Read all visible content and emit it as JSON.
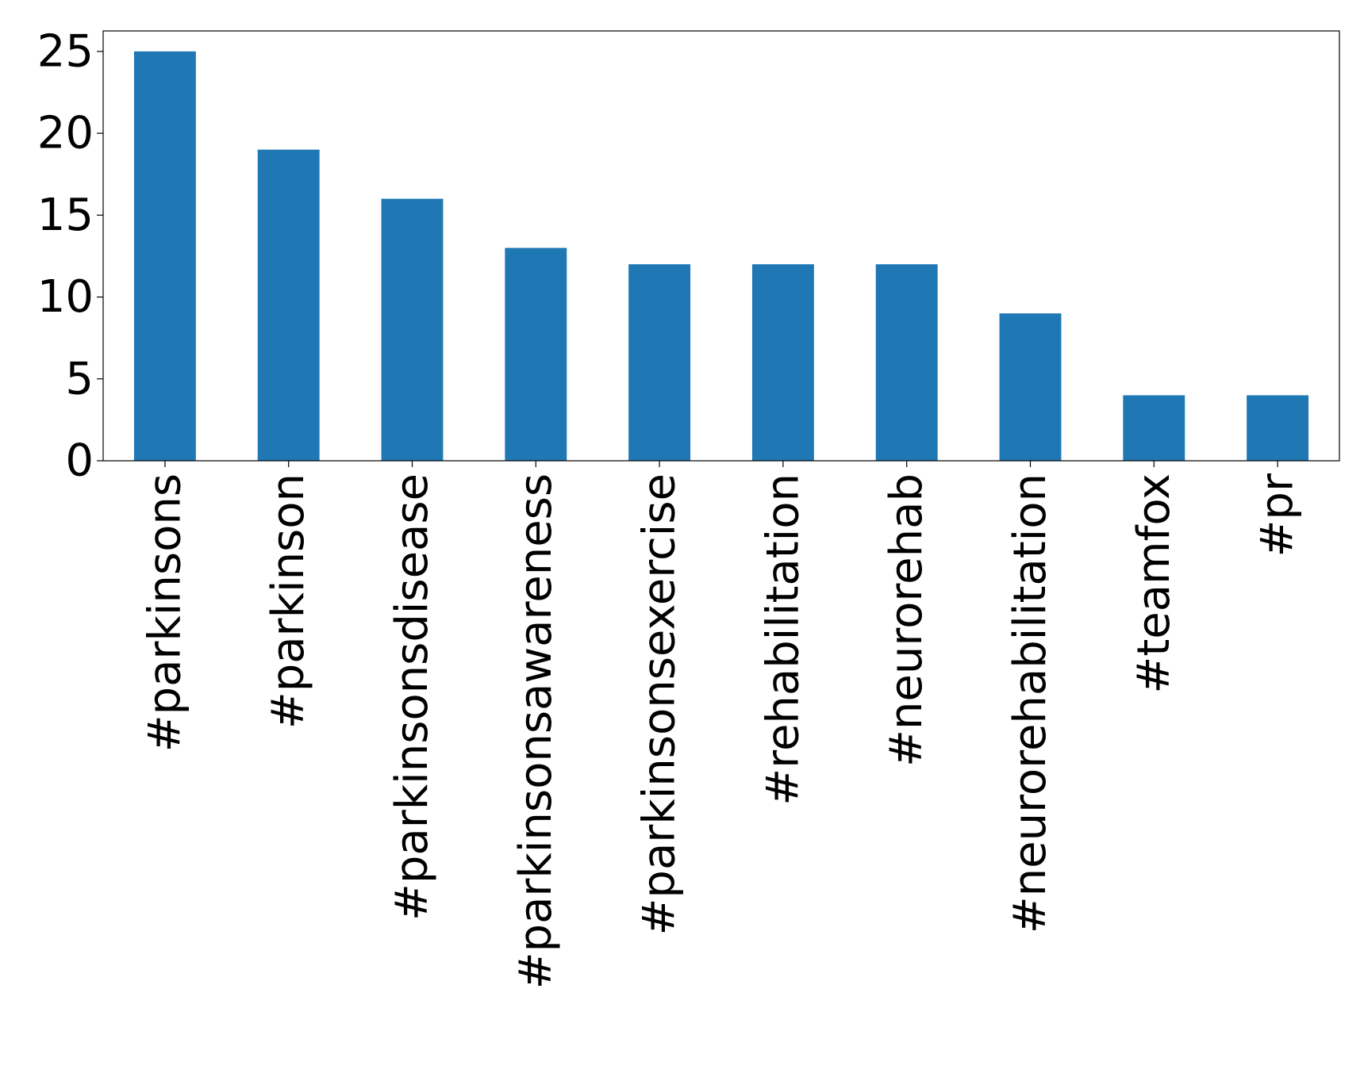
{
  "chart_data": {
    "type": "bar",
    "title": "",
    "xlabel": "",
    "ylabel": "",
    "categories": [
      "#parkinsons",
      "#parkinson",
      "#parkinsonsdisease",
      "#parkinsonsawareness",
      "#parkinsonsexercise",
      "#rehabilitation",
      "#neurorehab",
      "#neurorehabilitation",
      "#teamfox",
      "#pr"
    ],
    "values": [
      25,
      19,
      16,
      13,
      12,
      12,
      12,
      9,
      4,
      4
    ],
    "ylim": [
      0,
      26.25
    ],
    "yticks": [
      0,
      5,
      10,
      15,
      20,
      25
    ],
    "grid": false,
    "legend": "none",
    "bar_color": "#1f77b4"
  }
}
